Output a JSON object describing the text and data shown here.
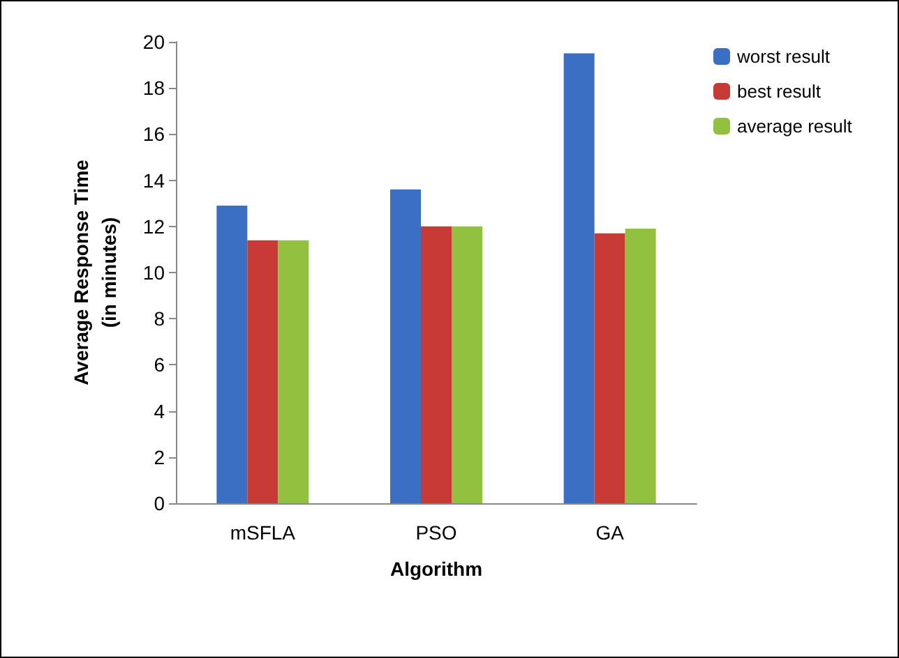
{
  "chart_data": {
    "type": "bar",
    "xlabel": "Algorithm",
    "ylabel": "Average Response Time\n(in minutes)",
    "categories": [
      "mSFLA",
      "PSO",
      "GA"
    ],
    "series": [
      {
        "name": "worst result",
        "color": "#3a6fc4",
        "values": [
          12.9,
          13.6,
          19.5
        ]
      },
      {
        "name": "best result",
        "color": "#c83a36",
        "values": [
          11.4,
          12.0,
          11.7
        ]
      },
      {
        "name": "average result",
        "color": "#92c03f",
        "values": [
          11.4,
          12.0,
          11.9
        ]
      }
    ],
    "ylim": [
      0,
      20
    ],
    "yticks": [
      0,
      2,
      4,
      6,
      8,
      10,
      12,
      14,
      16,
      18,
      20
    ],
    "grid": false,
    "legend": "top right"
  }
}
